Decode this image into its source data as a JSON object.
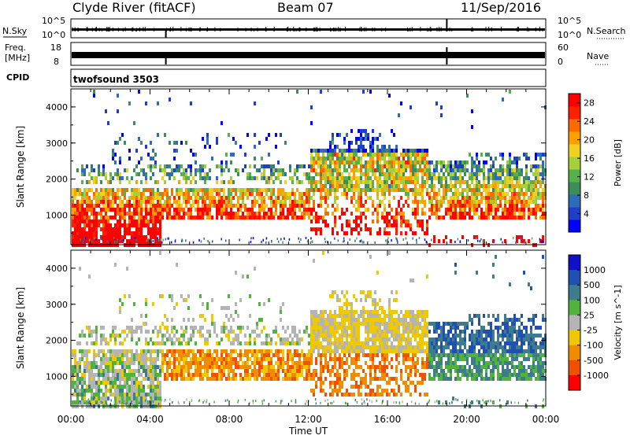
{
  "header": {
    "station": "Clyde River (fitACF)",
    "beam": "Beam 07",
    "date": "11/Sep/2016"
  },
  "noise_panel": {
    "left_label": "N.Sky",
    "left_ticks": [
      "10^5",
      "10^0"
    ],
    "right_label": "N.Search",
    "right_ticks": [
      "10^5",
      "10^0"
    ]
  },
  "freq_panel": {
    "left_label_1": "Freq.",
    "left_label_2": "[MHz]",
    "left_ticks": [
      "18",
      "8"
    ],
    "right_label": "Nave",
    "right_ticks": [
      "60",
      "0"
    ]
  },
  "cpid_panel": {
    "label": "CPID",
    "mode": "twofsound 3503"
  },
  "chart_data": [
    {
      "type": "heatmap",
      "title": "Power",
      "ylabel": "Slant Range [km]",
      "xlabel": "",
      "x_ticks": [
        "00:00",
        "04:00",
        "08:00",
        "12:00",
        "16:00",
        "20:00",
        "00:00"
      ],
      "y_ticks": [
        "1000",
        "2000",
        "3000",
        "4000"
      ],
      "ylim": [
        180,
        4500
      ],
      "xlim_hours": [
        0,
        24
      ],
      "colorbar": {
        "label": "Power [dB]",
        "ticks": [
          "4",
          "8",
          "12",
          "16",
          "20",
          "24",
          "28"
        ],
        "range": [
          0,
          30
        ],
        "colors": [
          "#0000ff",
          "#1f3fc8",
          "#2c6cb8",
          "#3c8c5c",
          "#58b04a",
          "#a6cf3c",
          "#f0d020",
          "#ffa000",
          "#ff6a00",
          "#ff2000",
          "#ff0000"
        ]
      }
    },
    {
      "type": "heatmap",
      "title": "Velocity",
      "ylabel": "Slant Range [km]",
      "xlabel": "Time UT",
      "x_ticks": [
        "00:00",
        "04:00",
        "08:00",
        "12:00",
        "16:00",
        "20:00",
        "00:00"
      ],
      "y_ticks": [
        "1000",
        "2000",
        "3000",
        "4000"
      ],
      "ylim": [
        180,
        4500
      ],
      "xlim_hours": [
        0,
        24
      ],
      "colorbar": {
        "label": "Velocity [m s^-1]",
        "ticks": [
          "1000",
          "500",
          "100",
          "25",
          "-25",
          "-100",
          "-500",
          "-1000"
        ],
        "colors": [
          "#1010c8",
          "#2050b0",
          "#3c7c8c",
          "#50b43c",
          "#b4b4b4",
          "#f0c800",
          "#f08c00",
          "#f05000",
          "#ff0000"
        ]
      }
    }
  ]
}
